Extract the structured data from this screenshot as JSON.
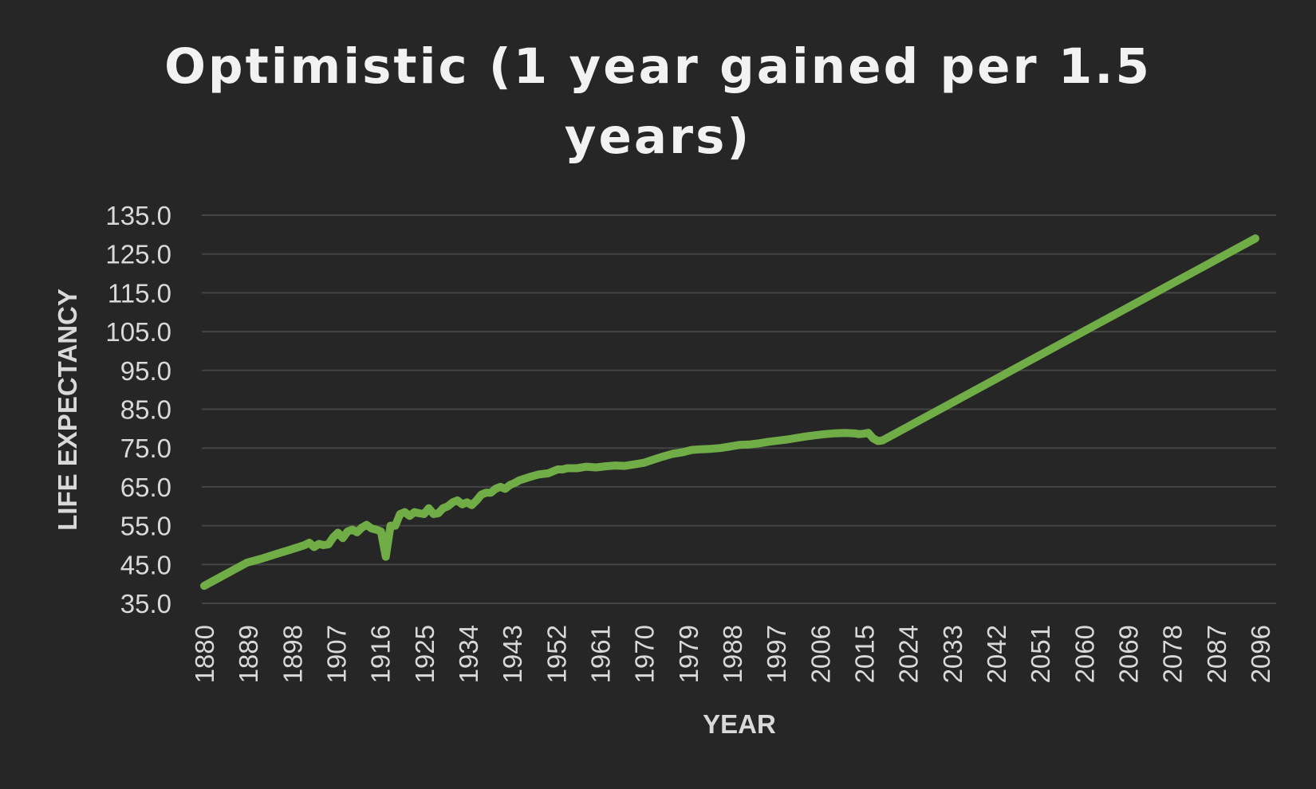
{
  "chart_data": {
    "type": "line",
    "title_lines": [
      "Optimistic (1 year gained per 1.5",
      "years)"
    ],
    "xlabel": "YEAR",
    "ylabel": "LIFE EXPECTANCY",
    "xlim": [
      1880,
      2100
    ],
    "ylim": [
      35,
      135
    ],
    "yticks": [
      35,
      45,
      55,
      65,
      75,
      85,
      95,
      105,
      115,
      125,
      135
    ],
    "ytick_labels": [
      "35.0",
      "45.0",
      "55.0",
      "65.0",
      "75.0",
      "85.0",
      "95.0",
      "105.0",
      "115.0",
      "125.0",
      "135.0"
    ],
    "xtick_labels": [
      "1880",
      "1889",
      "1898",
      "1907",
      "1916",
      "1925",
      "1934",
      "1943",
      "1952",
      "1961",
      "1970",
      "1979",
      "1988",
      "1997",
      "2006",
      "2015",
      "2024",
      "2033",
      "2042",
      "2051",
      "2060",
      "2069",
      "2078",
      "2087",
      "2096"
    ],
    "grid": true,
    "legend": "none",
    "series": [
      {
        "color": "#70ad47",
        "x": [
          1880,
          1883,
          1886,
          1889,
          1892,
          1895,
          1898,
          1901,
          1902,
          1903,
          1904,
          1905,
          1906,
          1907,
          1908,
          1909,
          1910,
          1911,
          1912,
          1913,
          1914,
          1915,
          1916,
          1917,
          1918,
          1919,
          1920,
          1921,
          1922,
          1923,
          1924,
          1925,
          1926,
          1927,
          1928,
          1929,
          1930,
          1931,
          1932,
          1933,
          1934,
          1935,
          1936,
          1937,
          1938,
          1939,
          1940,
          1941,
          1942,
          1943,
          1944,
          1945,
          1946,
          1948,
          1950,
          1952,
          1954,
          1955,
          1956,
          1958,
          1960,
          1962,
          1964,
          1966,
          1968,
          1970,
          1972,
          1974,
          1976,
          1978,
          1980,
          1982,
          1984,
          1986,
          1988,
          1990,
          1992,
          1994,
          1996,
          1998,
          2000,
          2002,
          2004,
          2006,
          2008,
          2010,
          2012,
          2014,
          2016,
          2017,
          2018,
          2019,
          2020,
          2021,
          2022,
          2100
        ],
        "y": [
          39.5,
          41.5,
          43.5,
          45.5,
          46.5,
          47.7,
          48.8,
          50.0,
          50.6,
          49.5,
          50.3,
          50.0,
          50.2,
          52.0,
          53.2,
          51.8,
          53.5,
          54.0,
          53.3,
          54.5,
          55.2,
          54.3,
          54.0,
          53.5,
          47.0,
          55.0,
          55.0,
          58.0,
          58.5,
          57.5,
          58.5,
          58.2,
          58.0,
          59.5,
          58.0,
          58.2,
          59.5,
          60.0,
          61.0,
          61.5,
          60.5,
          61.0,
          60.3,
          61.5,
          63.0,
          63.5,
          63.5,
          64.5,
          65.0,
          64.5,
          65.5,
          66.0,
          66.7,
          67.5,
          68.2,
          68.5,
          69.5,
          69.5,
          69.8,
          69.8,
          70.2,
          70.0,
          70.3,
          70.5,
          70.4,
          70.8,
          71.2,
          72.0,
          72.8,
          73.5,
          73.9,
          74.5,
          74.7,
          74.8,
          75.0,
          75.4,
          75.8,
          75.9,
          76.2,
          76.6,
          76.9,
          77.2,
          77.6,
          78.0,
          78.3,
          78.6,
          78.8,
          78.9,
          78.8,
          78.6,
          78.7,
          78.9,
          77.5,
          76.8,
          77.0,
          129.0
        ]
      }
    ]
  }
}
